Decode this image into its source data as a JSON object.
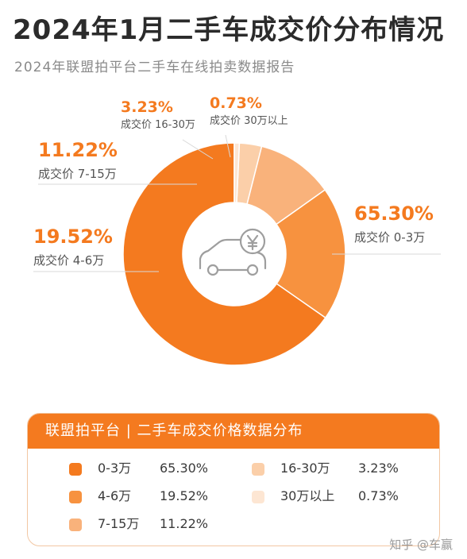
{
  "header": {
    "title": "2024年1月二手车成交价分布情况",
    "subtitle": "2024年联盟拍平台二手车在线拍卖数据报告"
  },
  "chart_data": {
    "type": "pie",
    "title": "2024年1月二手车成交价分布情况",
    "subtitle": "2024年联盟拍平台二手车在线拍卖数据报告",
    "categories": [
      "0-3万",
      "4-6万",
      "7-15万",
      "16-30万",
      "30万以上"
    ],
    "values": [
      65.3,
      19.52,
      11.22,
      3.23,
      0.73
    ],
    "value_labels": [
      "65.30%",
      "19.52%",
      "11.22%",
      "3.23%",
      "0.73%"
    ],
    "callout_labels": [
      "成交价 0-3万",
      "成交价 4-6万",
      "成交价 7-15万",
      "成交价 16-30万",
      "成交价 30万以上"
    ],
    "colors": [
      "#f47a1f",
      "#f7923f",
      "#f9b27b",
      "#fbcfa9",
      "#fde6d3"
    ],
    "donut": true,
    "center_icon": "car-currency-icon"
  },
  "legend": {
    "header": "联盟拍平台 | 二手车成交价格数据分布",
    "items": [
      {
        "label": "0-3万",
        "value": "65.30%",
        "color": "#f47a1f"
      },
      {
        "label": "4-6万",
        "value": "19.52%",
        "color": "#f7923f"
      },
      {
        "label": "7-15万",
        "value": "11.22%",
        "color": "#f9b27b"
      },
      {
        "label": "16-30万",
        "value": "3.23%",
        "color": "#fbcfa9"
      },
      {
        "label": "30万以上",
        "value": "0.73%",
        "color": "#fde6d3"
      }
    ]
  },
  "watermark": "知乎 @车赢"
}
